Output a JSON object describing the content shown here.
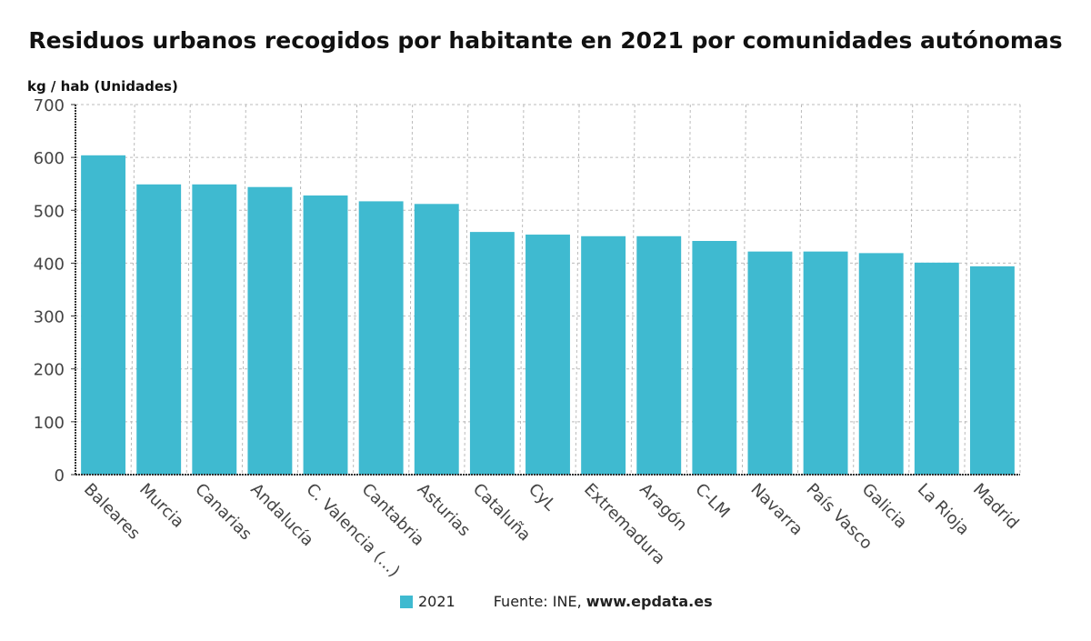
{
  "chart_data": {
    "type": "bar",
    "title": "Residuos urbanos recogidos por habitante en 2021 por comunidades autónomas",
    "ylabel": "kg / hab (Unidades)",
    "xlabel": "",
    "ylim": [
      0,
      700
    ],
    "yticks": [
      0,
      100,
      200,
      300,
      400,
      500,
      600,
      700
    ],
    "grid": true,
    "categories": [
      "Baleares",
      "Murcia",
      "Canarias",
      "Andalucía",
      "C. Valencia (...)",
      "Cantabria",
      "Asturias",
      "Cataluña",
      "CyL",
      "Extremadura",
      "Aragón",
      "C-LM",
      "Navarra",
      "País Vasco",
      "Galicia",
      "La Rioja",
      "Madrid"
    ],
    "series": [
      {
        "name": "2021",
        "color": "#3fbad0",
        "values": [
          604,
          549,
          549,
          544,
          528,
          517,
          512,
          459,
          454,
          451,
          451,
          442,
          422,
          422,
          419,
          401,
          394
        ]
      }
    ],
    "legend": "bottom-center"
  },
  "source": {
    "prefix": "Fuente: INE, ",
    "site": "www.epdata.es"
  }
}
